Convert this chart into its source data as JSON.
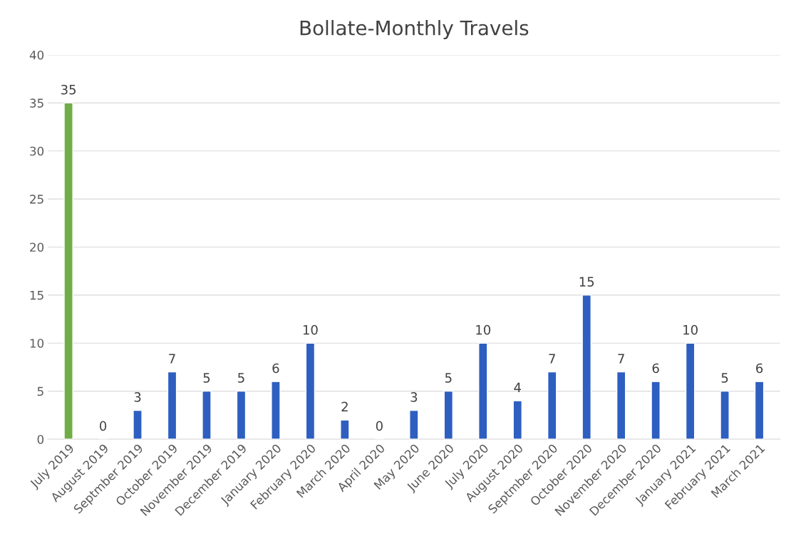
{
  "chart_data": {
    "type": "bar",
    "title": "Bollate-Monthly Travels",
    "categories": [
      "July 2019",
      "August 2019",
      "Septmber 2019",
      "October 2019",
      "November 2019",
      "December 2019",
      "January 2020",
      "February 2020",
      "March 2020",
      "April 2020",
      "May 2020",
      "June 2020",
      "July 2020",
      "August 2020",
      "Septmber 2020",
      "October 2020",
      "November 2020",
      "December 2020",
      "January 2021",
      "February 2021",
      "March 2021"
    ],
    "values": [
      35,
      0,
      3,
      7,
      5,
      5,
      6,
      10,
      2,
      0,
      3,
      5,
      10,
      4,
      7,
      15,
      7,
      6,
      10,
      5,
      6
    ],
    "colors": [
      "#70ad47",
      null,
      "#2e5fc0",
      "#2e5fc0",
      "#2e5fc0",
      "#2e5fc0",
      "#2e5fc0",
      "#2e5fc0",
      "#2e5fc0",
      null,
      "#2e5fc0",
      "#2e5fc0",
      "#2e5fc0",
      "#2e5fc0",
      "#2e5fc0",
      "#2e5fc0",
      "#2e5fc0",
      "#2e5fc0",
      "#2e5fc0",
      "#2e5fc0",
      "#2e5fc0"
    ],
    "ylim": [
      0,
      40
    ],
    "yticks": [
      0,
      5,
      10,
      15,
      20,
      25,
      30,
      35,
      40
    ],
    "grid": "y",
    "data_labels": true
  }
}
